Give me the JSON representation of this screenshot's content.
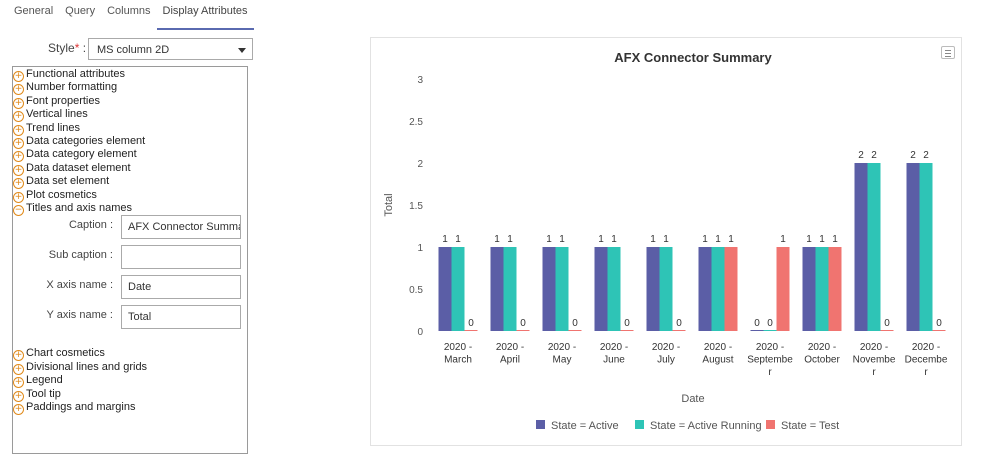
{
  "tabs": [
    {
      "label": "General"
    },
    {
      "label": "Query"
    },
    {
      "label": "Columns"
    },
    {
      "label": "Display Attributes"
    }
  ],
  "style": {
    "label": "Style",
    "required_mark": "*",
    "colon": " :",
    "value": "MS column 2D"
  },
  "tree": [
    {
      "label": "Functional attributes",
      "state": "collapsed"
    },
    {
      "label": "Number formatting",
      "state": "collapsed"
    },
    {
      "label": "Font properties",
      "state": "collapsed"
    },
    {
      "label": "Vertical lines",
      "state": "collapsed"
    },
    {
      "label": "Trend lines",
      "state": "collapsed"
    },
    {
      "label": "Data categories element",
      "state": "collapsed"
    },
    {
      "label": "Data category element",
      "state": "collapsed"
    },
    {
      "label": "Data dataset element",
      "state": "collapsed"
    },
    {
      "label": "Data set element",
      "state": "collapsed"
    },
    {
      "label": "Plot cosmetics",
      "state": "collapsed"
    },
    {
      "label": "Titles and axis names",
      "state": "expanded"
    },
    {
      "label": "Chart cosmetics",
      "state": "collapsed"
    },
    {
      "label": "Divisional lines and grids",
      "state": "collapsed"
    },
    {
      "label": "Legend",
      "state": "collapsed"
    },
    {
      "label": "Tool tip",
      "state": "collapsed"
    },
    {
      "label": "Paddings and margins",
      "state": "collapsed"
    }
  ],
  "titles_fields": [
    {
      "label": "Caption :",
      "value": "AFX Connector Summary"
    },
    {
      "label": "Sub caption :",
      "value": ""
    },
    {
      "label": "X axis name :",
      "value": "Date"
    },
    {
      "label": "Y axis name :",
      "value": "Total"
    }
  ],
  "chart_data": {
    "type": "bar",
    "title": "AFX Connector Summary",
    "xlabel": "Date",
    "ylabel": "Total",
    "ylim": [
      0,
      3
    ],
    "yticks": [
      "0",
      "0.5",
      "1",
      "1.5",
      "2",
      "2.5",
      "3"
    ],
    "categories": [
      [
        "2020 -",
        "March"
      ],
      [
        "2020 -",
        "April"
      ],
      [
        "2020 -",
        "May"
      ],
      [
        "2020 -",
        "June"
      ],
      [
        "2020 -",
        "July"
      ],
      [
        "2020 -",
        "August"
      ],
      [
        "2020 -",
        "Septembe",
        "r"
      ],
      [
        "2020 -",
        "October"
      ],
      [
        "2020 -",
        "Novembe",
        "r"
      ],
      [
        "2020 -",
        "Decembe",
        "r"
      ]
    ],
    "series": [
      {
        "name": "State = Active",
        "color": "#5b5ea6",
        "values": [
          1,
          1,
          1,
          1,
          1,
          1,
          0,
          1,
          2,
          2
        ]
      },
      {
        "name": "State = Active Running",
        "color": "#2ec4b6",
        "values": [
          1,
          1,
          1,
          1,
          1,
          1,
          0,
          1,
          2,
          2
        ]
      },
      {
        "name": "State = Test",
        "color": "#f07470",
        "values": [
          0,
          0,
          0,
          0,
          0,
          1,
          1,
          1,
          0,
          0
        ]
      }
    ],
    "legend_position": "bottom"
  }
}
